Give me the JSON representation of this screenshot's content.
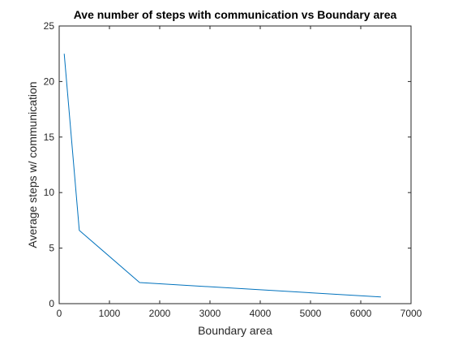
{
  "chart_data": {
    "type": "line",
    "title": "Ave number of steps with communication vs Boundary area",
    "xlabel": "Boundary area",
    "ylabel": "Average steps w/ communication",
    "xlim": [
      0,
      7000
    ],
    "ylim": [
      0,
      25
    ],
    "xticks": [
      "0",
      "1000",
      "2000",
      "3000",
      "4000",
      "5000",
      "6000",
      "7000"
    ],
    "yticks": [
      "0",
      "5",
      "10",
      "15",
      "20",
      "25"
    ],
    "grid": false,
    "series": [
      {
        "color": "#0072bd",
        "x": [
          100,
          400,
          1600,
          6400
        ],
        "y": [
          22.5,
          6.6,
          1.9,
          0.6
        ]
      }
    ]
  }
}
